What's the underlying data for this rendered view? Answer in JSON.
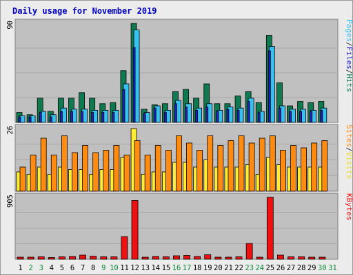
{
  "chart_data": {
    "type": "bar",
    "title": "Daily usage for November 2019",
    "categories": [
      "1",
      "2",
      "3",
      "4",
      "5",
      "6",
      "7",
      "8",
      "9",
      "10",
      "11",
      "12",
      "13",
      "14",
      "15",
      "16",
      "17",
      "18",
      "19",
      "20",
      "21",
      "22",
      "23",
      "24",
      "25",
      "26",
      "27",
      "28",
      "29",
      "30",
      "31"
    ],
    "weekend_days": [
      "2",
      "3",
      "9",
      "10",
      "16",
      "17",
      "23",
      "24",
      "30",
      "31"
    ],
    "panels": [
      {
        "id": "hits-files-pages",
        "ymax_label": "90",
        "ymax": 90,
        "right_label": [
          "Pages",
          "/",
          "Files",
          "/",
          "Hits"
        ],
        "series": [
          {
            "name": "Hits",
            "color": "#0f7a4f",
            "values": [
              9,
              7,
              22,
              10,
              22,
              22,
              27,
              22,
              17,
              18,
              47,
              90,
              12,
              16,
              17,
              28,
              30,
              22,
              35,
              17,
              17,
              24,
              28,
              18,
              79,
              36,
              15,
              19,
              18,
              19,
              null
            ]
          },
          {
            "name": "Files",
            "color": "#37c1ef",
            "values": [
              6,
              6,
              10,
              7,
              13,
              12,
              12,
              11,
              11,
              11,
              35,
              84,
              9,
              15,
              11,
              20,
              17,
              13,
              17,
              11,
              14,
              13,
              22,
              10,
              69,
              15,
              12,
              12,
              11,
              13,
              null
            ]
          },
          {
            "name": "Pages",
            "color": "#2222cc",
            "values": [
              5,
              5,
              9,
              5,
              10,
              10,
              10,
              9,
              9,
              9,
              30,
              68,
              8,
              13,
              9,
              17,
              14,
              11,
              14,
              10,
              12,
              11,
              19,
              9,
              65,
              13,
              10,
              10,
              10,
              11,
              null
            ]
          }
        ]
      },
      {
        "id": "visits-sites",
        "ymax_label": "26",
        "ymax": 26,
        "right_label": [
          "Sites",
          "/",
          "Visits"
        ],
        "series": [
          {
            "name": "Visits",
            "color": "#ffee33",
            "values": [
              8,
              7,
              10,
              7,
              10,
              9,
              9,
              7,
              9,
              9,
              14,
              26,
              7,
              8,
              8,
              12,
              12,
              10,
              13,
              10,
              10,
              10,
              11,
              7,
              14,
              11,
              10,
              10,
              10,
              10,
              null
            ]
          },
          {
            "name": "Sites",
            "color": "#ff8c10",
            "values": [
              10,
              15,
              22,
              15,
              23,
              16,
              19,
              16,
              17,
              19,
              15,
              21,
              15,
              19,
              17,
              23,
              20,
              17,
              23,
              19,
              21,
              23,
              20,
              22,
              23,
              17,
              19,
              18,
              20,
              21,
              null
            ]
          }
        ]
      },
      {
        "id": "kbytes",
        "ymax_label": "905",
        "ymax": 905,
        "right_label": [
          "KBytes"
        ],
        "series": [
          {
            "name": "KBytes",
            "color": "#ee1111",
            "values": [
              30,
              30,
              35,
              25,
              35,
              40,
              60,
              45,
              35,
              35,
              330,
              860,
              30,
              40,
              35,
              50,
              55,
              40,
              65,
              30,
              30,
              35,
              230,
              30,
              905,
              60,
              35,
              35,
              30,
              30,
              null
            ]
          }
        ]
      }
    ],
    "legend_placement": "right-vertical",
    "grid": true
  }
}
